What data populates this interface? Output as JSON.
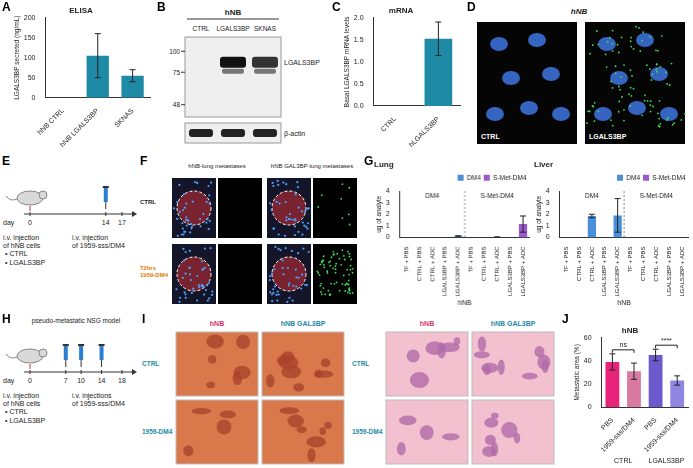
{
  "chart_data": [
    {
      "panel": "A",
      "type": "bar",
      "title": "ELISA",
      "y_label": "LGALS3BP secreted (ng/mL)",
      "categories": [
        "hNB CTRL",
        "hNB LGALS3BP",
        "SKNAS"
      ],
      "values": [
        0,
        105,
        55
      ],
      "errors": [
        0,
        55,
        15
      ],
      "color": "#1f8aa6",
      "ylim": [
        0,
        200
      ],
      "yticks": [
        0,
        50,
        100,
        150,
        200
      ],
      "grid": false
    },
    {
      "panel": "C",
      "type": "bar",
      "title": "mRNA",
      "y_label": "Basal LGALS3BP mRNA levels",
      "categories": [
        "CTRL",
        "hLGALS3BP"
      ],
      "values": [
        0,
        1.52
      ],
      "errors": [
        0,
        0.38
      ],
      "color": "#1f8aa6",
      "ylim": [
        0,
        2
      ],
      "yticks": [
        {
          "value": 0,
          "label": "0.0"
        },
        {
          "value": 0.5,
          "label": "0.5"
        },
        {
          "value": 1,
          "label": "1.0"
        },
        {
          "value": 1.5,
          "label": "1.5"
        },
        {
          "value": 2,
          "label": "2.0"
        }
      ],
      "grid": false
    },
    {
      "panel": "G",
      "type": "bar",
      "title": "Lung",
      "y_label": "ug of analyte",
      "x_label": "hNB",
      "categories": [
        "TF + PBS",
        "CTRL + PBS",
        "CTRL + ADC",
        "LGALS3BP + PBS",
        "LGALS3BP + ADC",
        "TF + PBS",
        "CTRL + PBS",
        "CTRL + ADC",
        "LGALS3BP + PBS",
        "LGALS3BP + ADC"
      ],
      "groups": [
        "DM4",
        "S-Met-DM4"
      ],
      "series": [
        {
          "name": "DM4",
          "color": "#4a90d9",
          "values": [
            0,
            0,
            0,
            0,
            0.1,
            null,
            null,
            null,
            null,
            null
          ],
          "errors": [
            0,
            0,
            0,
            0,
            0.05,
            null,
            null,
            null,
            null,
            null
          ]
        },
        {
          "name": "S-Met-DM4",
          "color": "#9b59d0",
          "values": [
            null,
            null,
            null,
            null,
            null,
            0,
            0,
            0.03,
            0,
            1.15
          ],
          "errors": [
            null,
            null,
            null,
            null,
            null,
            0,
            0,
            0.02,
            0,
            0.7
          ]
        }
      ],
      "ylim": [
        0,
        4
      ],
      "yticks": [
        0,
        1,
        2,
        3,
        4
      ],
      "grid": false,
      "legend": "top-right"
    },
    {
      "type": "bar",
      "title": "Liver",
      "y_label": "ug of analyte",
      "x_label": "hNB",
      "categories": [
        "TF + PBS",
        "CTRL + PBS",
        "CTRL + ADC",
        "LGALS3BP + PBS",
        "LGALS3BP + ADC",
        "TF + PBS",
        "CTRL + PBS",
        "CTRL + ADC",
        "LGALS3BP + PBS",
        "LGALS3BP + ADC"
      ],
      "groups": [
        "DM4",
        "S-Met-DM4"
      ],
      "series": [
        {
          "name": "DM4",
          "color": "#4a90d9",
          "values": [
            0,
            0,
            1.85,
            0,
            1.9,
            null,
            null,
            null,
            null,
            null
          ],
          "errors": [
            0,
            0,
            0.15,
            0,
            1.45,
            null,
            null,
            null,
            null,
            null
          ]
        },
        {
          "name": "S-Met-DM4",
          "color": "#9b59d0",
          "values": [
            null,
            null,
            null,
            null,
            null,
            0,
            0,
            0,
            0,
            0
          ],
          "errors": [
            null,
            null,
            null,
            null,
            null,
            0,
            0,
            0,
            0,
            0
          ]
        }
      ],
      "ylim": [
        0,
        4
      ],
      "yticks": [
        0,
        1,
        2,
        3,
        4
      ],
      "grid": false,
      "legend": "top-right"
    },
    {
      "panel": "J",
      "type": "bar",
      "title": "hNB",
      "y_label": "Metastatic area (%)",
      "categories": [
        "PBS",
        "1959-sss/DM4",
        "PBS",
        "1959-sss/DM4"
      ],
      "groups": [
        "CTRL",
        "LGALS3BP"
      ],
      "values": [
        39,
        31,
        45,
        23
      ],
      "errors": [
        7,
        7,
        5,
        4
      ],
      "colors": [
        "#e8247a",
        "#d97aa3",
        "#6a5acd",
        "#8e86e0"
      ],
      "annotations": [
        "ns",
        "****"
      ],
      "ylim": [
        0,
        60
      ],
      "yticks": [
        0,
        20,
        40,
        60
      ],
      "grid": false
    }
  ],
  "figures": [
    {
      "panel": "B",
      "title": "hNB",
      "lanes": [
        "CTRL",
        "LGALS3BP",
        "SKNAS"
      ],
      "markers": [
        100,
        75,
        48
      ],
      "bands": [
        "LGALS3BP",
        "β-actin"
      ]
    },
    {
      "panel": "D",
      "title": "hNB",
      "images": [
        "CTRL",
        "LGALS3BP"
      ]
    },
    {
      "panel": "E",
      "timeline": {
        "label": "day",
        "days": [
          0,
          14,
          17
        ]
      },
      "steps": [
        {
          "text": "i.v. injection of hNB cells",
          "items": [
            "• CTRL",
            "• LGALS3BP"
          ]
        },
        {
          "text": "i.v. injection of 1959-sss/DM4"
        }
      ]
    },
    {
      "panel": "F",
      "columns": [
        "hNB-lung metastases",
        "hNB GAL3BP-lung metastases"
      ],
      "rows": [
        "CTRL",
        "72hrs 1959-DM4"
      ]
    },
    {
      "panel": "H",
      "title": "pseudo-metastatic NSG model",
      "timeline": {
        "label": "day",
        "days": [
          0,
          7,
          10,
          14,
          18
        ]
      },
      "steps": [
        {
          "text": "i.v. injection of hNB cells",
          "items": [
            "• CTRL",
            "• LGALS3BP"
          ]
        },
        {
          "text": "i.v. injections of 1959-sss/DM4"
        }
      ]
    },
    {
      "panel": "I",
      "blocks": [
        {
          "columns": [
            "hNB",
            "hNB GAL3BP"
          ],
          "rows": [
            "CTRL",
            "1959-DM4"
          ]
        },
        {
          "columns": [
            "hNB",
            "hNB GAL3BP"
          ],
          "rows": [
            "CTRL",
            "1959-DM4"
          ]
        }
      ]
    }
  ]
}
